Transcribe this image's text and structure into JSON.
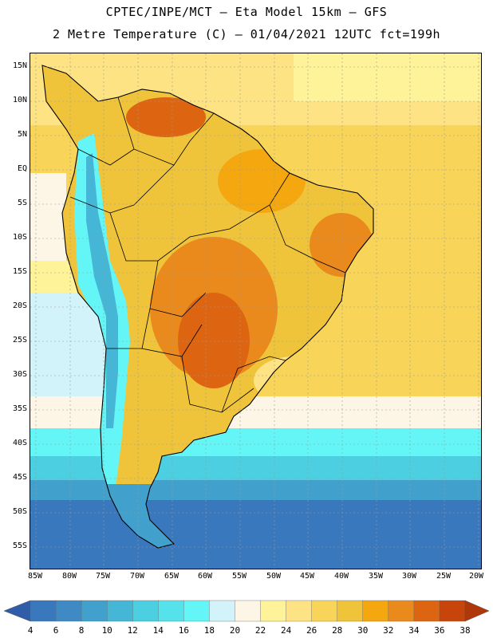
{
  "title": {
    "line1": "CPTEC/INPE/MCT –  Eta Model 15km – GFS",
    "line2": "2 Metre Temperature (C) – 01/04/2021 12UTC fct=199h"
  },
  "map": {
    "lat_labels": [
      "15N",
      "10N",
      "5N",
      "EQ",
      "5S",
      "10S",
      "15S",
      "20S",
      "25S",
      "30S",
      "35S",
      "40S",
      "45S",
      "50S",
      "55S"
    ],
    "lon_labels": [
      "85W",
      "80W",
      "75W",
      "70W",
      "65W",
      "60W",
      "55W",
      "50W",
      "45W",
      "40W",
      "35W",
      "30W",
      "25W",
      "20W"
    ]
  },
  "colorbar": {
    "labels": [
      "4",
      "6",
      "8",
      "10",
      "12",
      "14",
      "16",
      "18",
      "20",
      "22",
      "24",
      "26",
      "28",
      "30",
      "32",
      "34",
      "36",
      "38"
    ],
    "colors": [
      "#3a78bd",
      "#3f8ac4",
      "#41a0cc",
      "#46b6d6",
      "#4ccfe0",
      "#55e2ea",
      "#64f6f6",
      "#d2f3fa",
      "#fdf6e6",
      "#fef398",
      "#fde383",
      "#f8d458",
      "#f0c43a",
      "#f4a70f",
      "#ea8a1c",
      "#dd6512",
      "#c7450b"
    ],
    "low_color": "#2f5da8",
    "high_color": "#b0370a"
  }
}
